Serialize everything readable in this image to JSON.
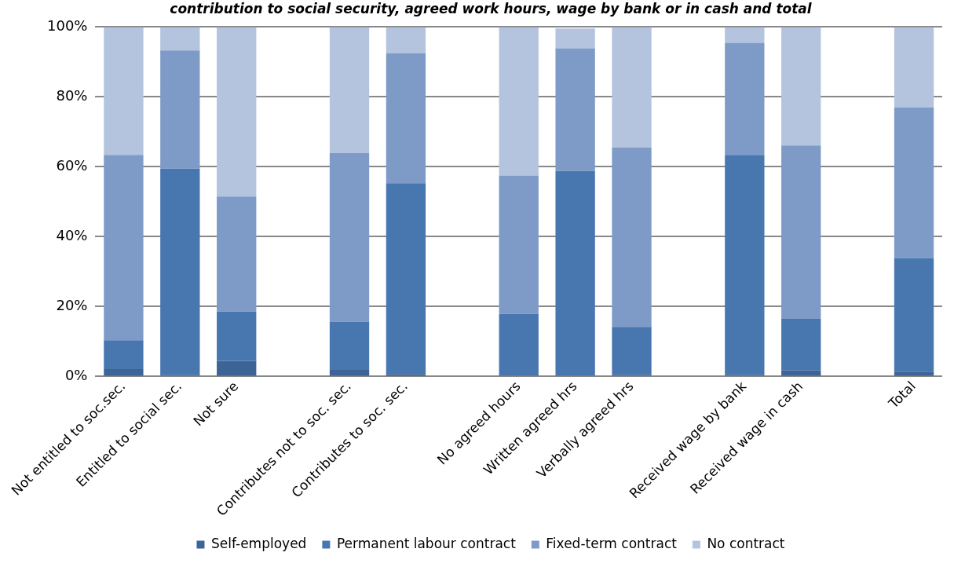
{
  "chart_data": {
    "type": "bar",
    "stacked": true,
    "title": "contribution to social security, agreed work hours, wage by bank or in cash and total",
    "categories": [
      "Not entitled to soc.sec.",
      "Entitled to social sec.",
      "Not sure",
      null,
      "Contributes not to soc. sec.",
      "Contributes to soc. sec.",
      null,
      "No agreed hours",
      "Written agreed hrs",
      "Verbally agreed hrs",
      null,
      "Received wage by bank",
      "Received wage in cash",
      null,
      "Total"
    ],
    "series": [
      {
        "name": "Self-employed",
        "color": "#3d6496",
        "values": [
          2.1,
          0.5,
          4.5,
          null,
          1.9,
          0.7,
          null,
          0,
          null,
          0.5,
          null,
          0.5,
          1.7,
          null,
          1.4
        ]
      },
      {
        "name": "Permanent labour contract",
        "color": "#4877b0",
        "values": [
          8.3,
          59,
          14.1,
          null,
          13.8,
          54.6,
          null,
          17.9,
          58.8,
          13.7,
          null,
          62.9,
          14.8,
          null,
          32.5
        ]
      },
      {
        "name": "Fixed-term contract",
        "color": "#7e9bc8",
        "values": [
          53,
          33.8,
          32.9,
          null,
          48.2,
          37.2,
          null,
          39.6,
          35.1,
          51.3,
          null,
          32.1,
          49.6,
          null,
          43.1
        ]
      },
      {
        "name": "No contract",
        "color": "#b4c3de",
        "values": [
          36.6,
          6.7,
          48.5,
          null,
          36.1,
          7.5,
          null,
          42.5,
          5.7,
          34.5,
          null,
          4.5,
          33.9,
          null,
          23
        ]
      }
    ],
    "ylim": [
      0,
      100
    ],
    "yticks": [
      {
        "value": 0,
        "label": "0%"
      },
      {
        "value": 20,
        "label": "20%"
      },
      {
        "value": 40,
        "label": "40%"
      },
      {
        "value": 60,
        "label": "60%"
      },
      {
        "value": 80,
        "label": "80%"
      },
      {
        "value": 100,
        "label": "100%"
      }
    ],
    "grid": "y",
    "legend": "bottom"
  }
}
